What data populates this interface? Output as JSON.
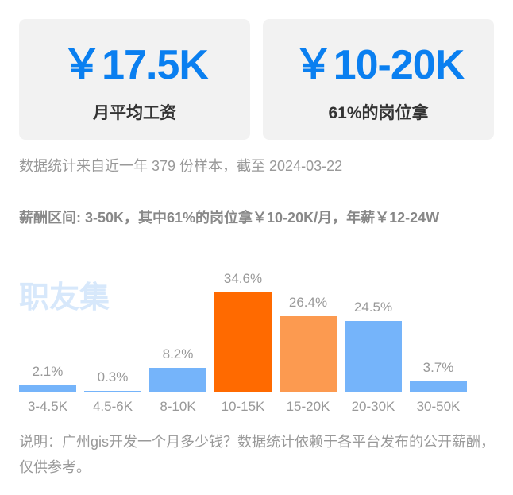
{
  "cards": [
    {
      "value": "￥17.5K",
      "label": "月平均工资"
    },
    {
      "value": "￥10-20K",
      "label": "61%的岗位拿"
    }
  ],
  "stats_text": "数据统计来自近一年 379 份样本，截至 2024-03-22",
  "range_text": "薪酬区间: 3-50K，其中61%的岗位拿￥10-20K/月，年薪￥12-24W",
  "watermark": "职友集",
  "note_text": "说明：广州gis开发一个月多少钱？数据统计依赖于各平台发布的公开薪酬，仅供参考。",
  "colors": {
    "accent_blue": "#0a7ff0",
    "bar_blue": "#75b4fa",
    "bar_orange_dark": "#ff6a00",
    "bar_orange_light": "#fc9a50"
  },
  "chart_data": {
    "type": "bar",
    "title": "",
    "xlabel": "",
    "ylabel": "",
    "categories": [
      "3-4.5K",
      "4.5-6K",
      "8-10K",
      "10-15K",
      "15-20K",
      "20-30K",
      "30-50K"
    ],
    "values": [
      2.1,
      0.3,
      8.2,
      34.6,
      26.4,
      24.5,
      3.7
    ],
    "value_labels": [
      "2.1%",
      "0.3%",
      "8.2%",
      "34.6%",
      "26.4%",
      "24.5%",
      "3.7%"
    ],
    "bar_colors": [
      "#75b4fa",
      "#75b4fa",
      "#75b4fa",
      "#ff6a00",
      "#fc9a50",
      "#75b4fa",
      "#75b4fa"
    ],
    "unit": "%",
    "grid": false,
    "legend": "none",
    "ylim": [
      0,
      35
    ]
  }
}
